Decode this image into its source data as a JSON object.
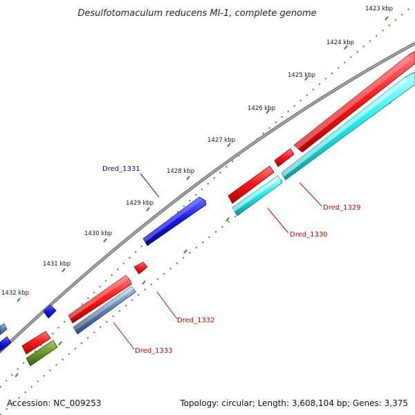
{
  "title": "Desulfotomaculum reducens MI-1, complete genome",
  "kbp_labels": [
    "1423 kbp",
    "1424 kbp",
    "1425 kbp",
    "1426 kbp",
    "1427 kbp",
    "1428 kbp",
    "1429 kbp",
    "1430 kbp",
    "1431 kbp",
    "1432 kbp"
  ],
  "gene_labels": {
    "dred_1329": "Dred_1329",
    "dred_1330": "Dred_1330",
    "dred_1331": "Dred_1331",
    "dred_1332": "Dred_1332",
    "dred_1333": "Dred_1333"
  },
  "footer": {
    "accession": "Accession: NC_009253",
    "stats": "Topology: circular; Length: 3,608,104 bp; Genes: 3,375"
  },
  "colors": {
    "backbone": "#8c8c8c",
    "gene_red": "#ff2020",
    "gene_cyan": "#22eeee",
    "gene_blue": "#1a1ae6",
    "gene_steel": "#5b86bf",
    "gene_olive": "#6e9a2e",
    "tick_green": "#2e8b2e",
    "label_blue": "#0000cc",
    "label_red": "#cc0000"
  }
}
